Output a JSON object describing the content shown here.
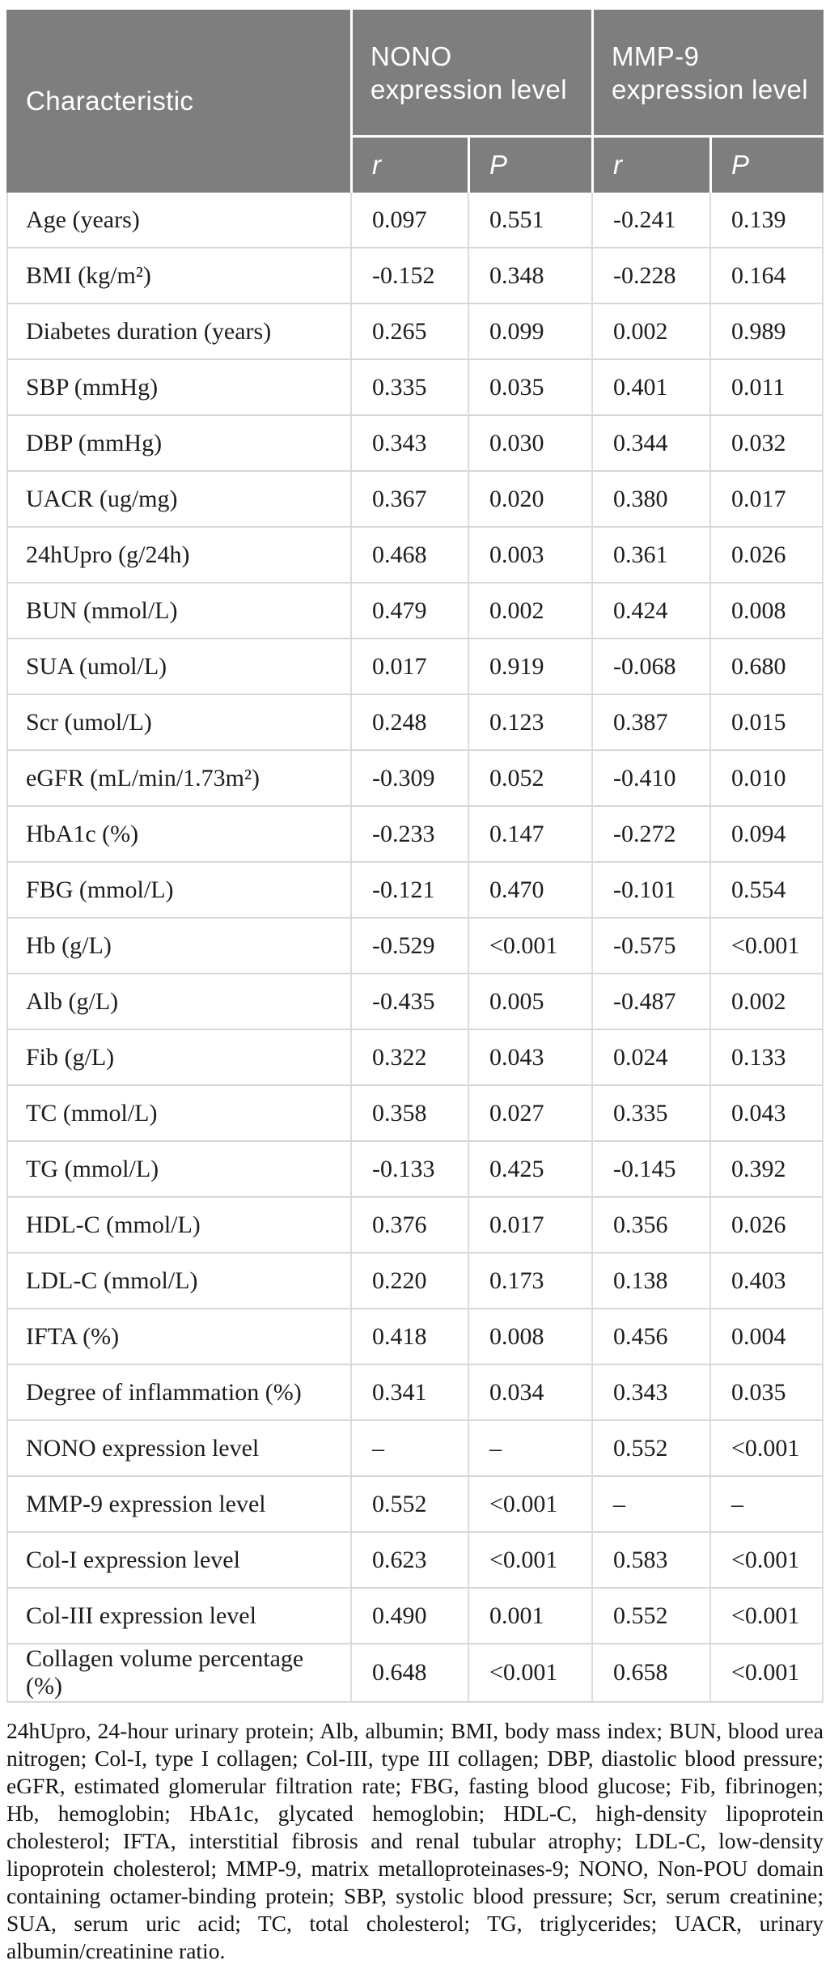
{
  "table": {
    "column_header": "Characteristic",
    "group_headers": [
      "NONO expression level",
      "MMP-9 expression level"
    ],
    "stat_headers": [
      "r",
      "P",
      "r",
      "P"
    ],
    "rows": [
      {
        "label": "Age (years)",
        "values": [
          "0.097",
          "0.551",
          "-0.241",
          "0.139"
        ]
      },
      {
        "label": "BMI (kg/m²)",
        "values": [
          "-0.152",
          "0.348",
          "-0.228",
          "0.164"
        ]
      },
      {
        "label": "Diabetes duration (years)",
        "values": [
          "0.265",
          "0.099",
          "0.002",
          "0.989"
        ]
      },
      {
        "label": "SBP (mmHg)",
        "values": [
          "0.335",
          "0.035",
          "0.401",
          "0.011"
        ]
      },
      {
        "label": "DBP (mmHg)",
        "values": [
          "0.343",
          "0.030",
          "0.344",
          "0.032"
        ]
      },
      {
        "label": "UACR (ug/mg)",
        "values": [
          "0.367",
          "0.020",
          "0.380",
          "0.017"
        ]
      },
      {
        "label": "24hUpro (g/24h)",
        "values": [
          "0.468",
          "0.003",
          "0.361",
          "0.026"
        ]
      },
      {
        "label": "BUN (mmol/L)",
        "values": [
          "0.479",
          "0.002",
          "0.424",
          "0.008"
        ]
      },
      {
        "label": "SUA (umol/L)",
        "values": [
          "0.017",
          "0.919",
          "-0.068",
          "0.680"
        ]
      },
      {
        "label": "Scr (umol/L)",
        "values": [
          "0.248",
          "0.123",
          "0.387",
          "0.015"
        ]
      },
      {
        "label": "eGFR (mL/min/1.73m²)",
        "values": [
          "-0.309",
          "0.052",
          "-0.410",
          "0.010"
        ]
      },
      {
        "label": "HbA1c (%)",
        "values": [
          "-0.233",
          "0.147",
          "-0.272",
          "0.094"
        ]
      },
      {
        "label": "FBG (mmol/L)",
        "values": [
          "-0.121",
          "0.470",
          "-0.101",
          "0.554"
        ]
      },
      {
        "label": "Hb (g/L)",
        "values": [
          "-0.529",
          "<0.001",
          "-0.575",
          "<0.001"
        ]
      },
      {
        "label": "Alb (g/L)",
        "values": [
          "-0.435",
          "0.005",
          "-0.487",
          "0.002"
        ]
      },
      {
        "label": "Fib (g/L)",
        "values": [
          "0.322",
          "0.043",
          "0.024",
          "0.133"
        ]
      },
      {
        "label": "TC (mmol/L)",
        "values": [
          "0.358",
          "0.027",
          "0.335",
          "0.043"
        ]
      },
      {
        "label": "TG (mmol/L)",
        "values": [
          "-0.133",
          "0.425",
          "-0.145",
          "0.392"
        ]
      },
      {
        "label": "HDL-C (mmol/L)",
        "values": [
          "0.376",
          "0.017",
          "0.356",
          "0.026"
        ]
      },
      {
        "label": "LDL-C (mmol/L)",
        "values": [
          "0.220",
          "0.173",
          "0.138",
          "0.403"
        ]
      },
      {
        "label": "IFTA (%)",
        "values": [
          "0.418",
          "0.008",
          "0.456",
          "0.004"
        ]
      },
      {
        "label": "Degree of inflammation (%)",
        "values": [
          "0.341",
          "0.034",
          "0.343",
          "0.035"
        ]
      },
      {
        "label": "NONO expression level",
        "values": [
          "–",
          "–",
          "0.552",
          "<0.001"
        ]
      },
      {
        "label": "MMP-9 expression level",
        "values": [
          "0.552",
          "<0.001",
          "–",
          "–"
        ]
      },
      {
        "label": "Col-I expression level",
        "values": [
          "0.623",
          "<0.001",
          "0.583",
          "<0.001"
        ]
      },
      {
        "label": "Col-III expression level",
        "values": [
          "0.490",
          "0.001",
          "0.552",
          "<0.001"
        ]
      },
      {
        "label": "Collagen volume percentage (%)",
        "values": [
          "0.648",
          "<0.001",
          "0.658",
          "<0.001"
        ]
      }
    ],
    "footnote": "24hUpro, 24-hour urinary protein; Alb, albumin; BMI, body mass index; BUN, blood urea nitrogen; Col-I, type I collagen; Col-III, type III collagen; DBP, diastolic blood pressure; eGFR, estimated glomerular filtration rate; FBG, fasting blood glucose; Fib, fibrinogen; Hb, hemoglobin; HbA1c, glycated hemoglobin; HDL-C, high-density lipoprotein cholesterol; IFTA, interstitial fibrosis and renal tubular atrophy; LDL-C, low-density lipoprotein cholesterol; MMP-9, matrix metalloproteinases-9; NONO, Non-POU domain containing octamer-binding protein; SBP, systolic blood pressure; Scr, serum creatinine; SUA, serum uric acid; TC, total cholesterol; TG, triglycerides; UACR, urinary albumin/creatinine ratio."
  }
}
